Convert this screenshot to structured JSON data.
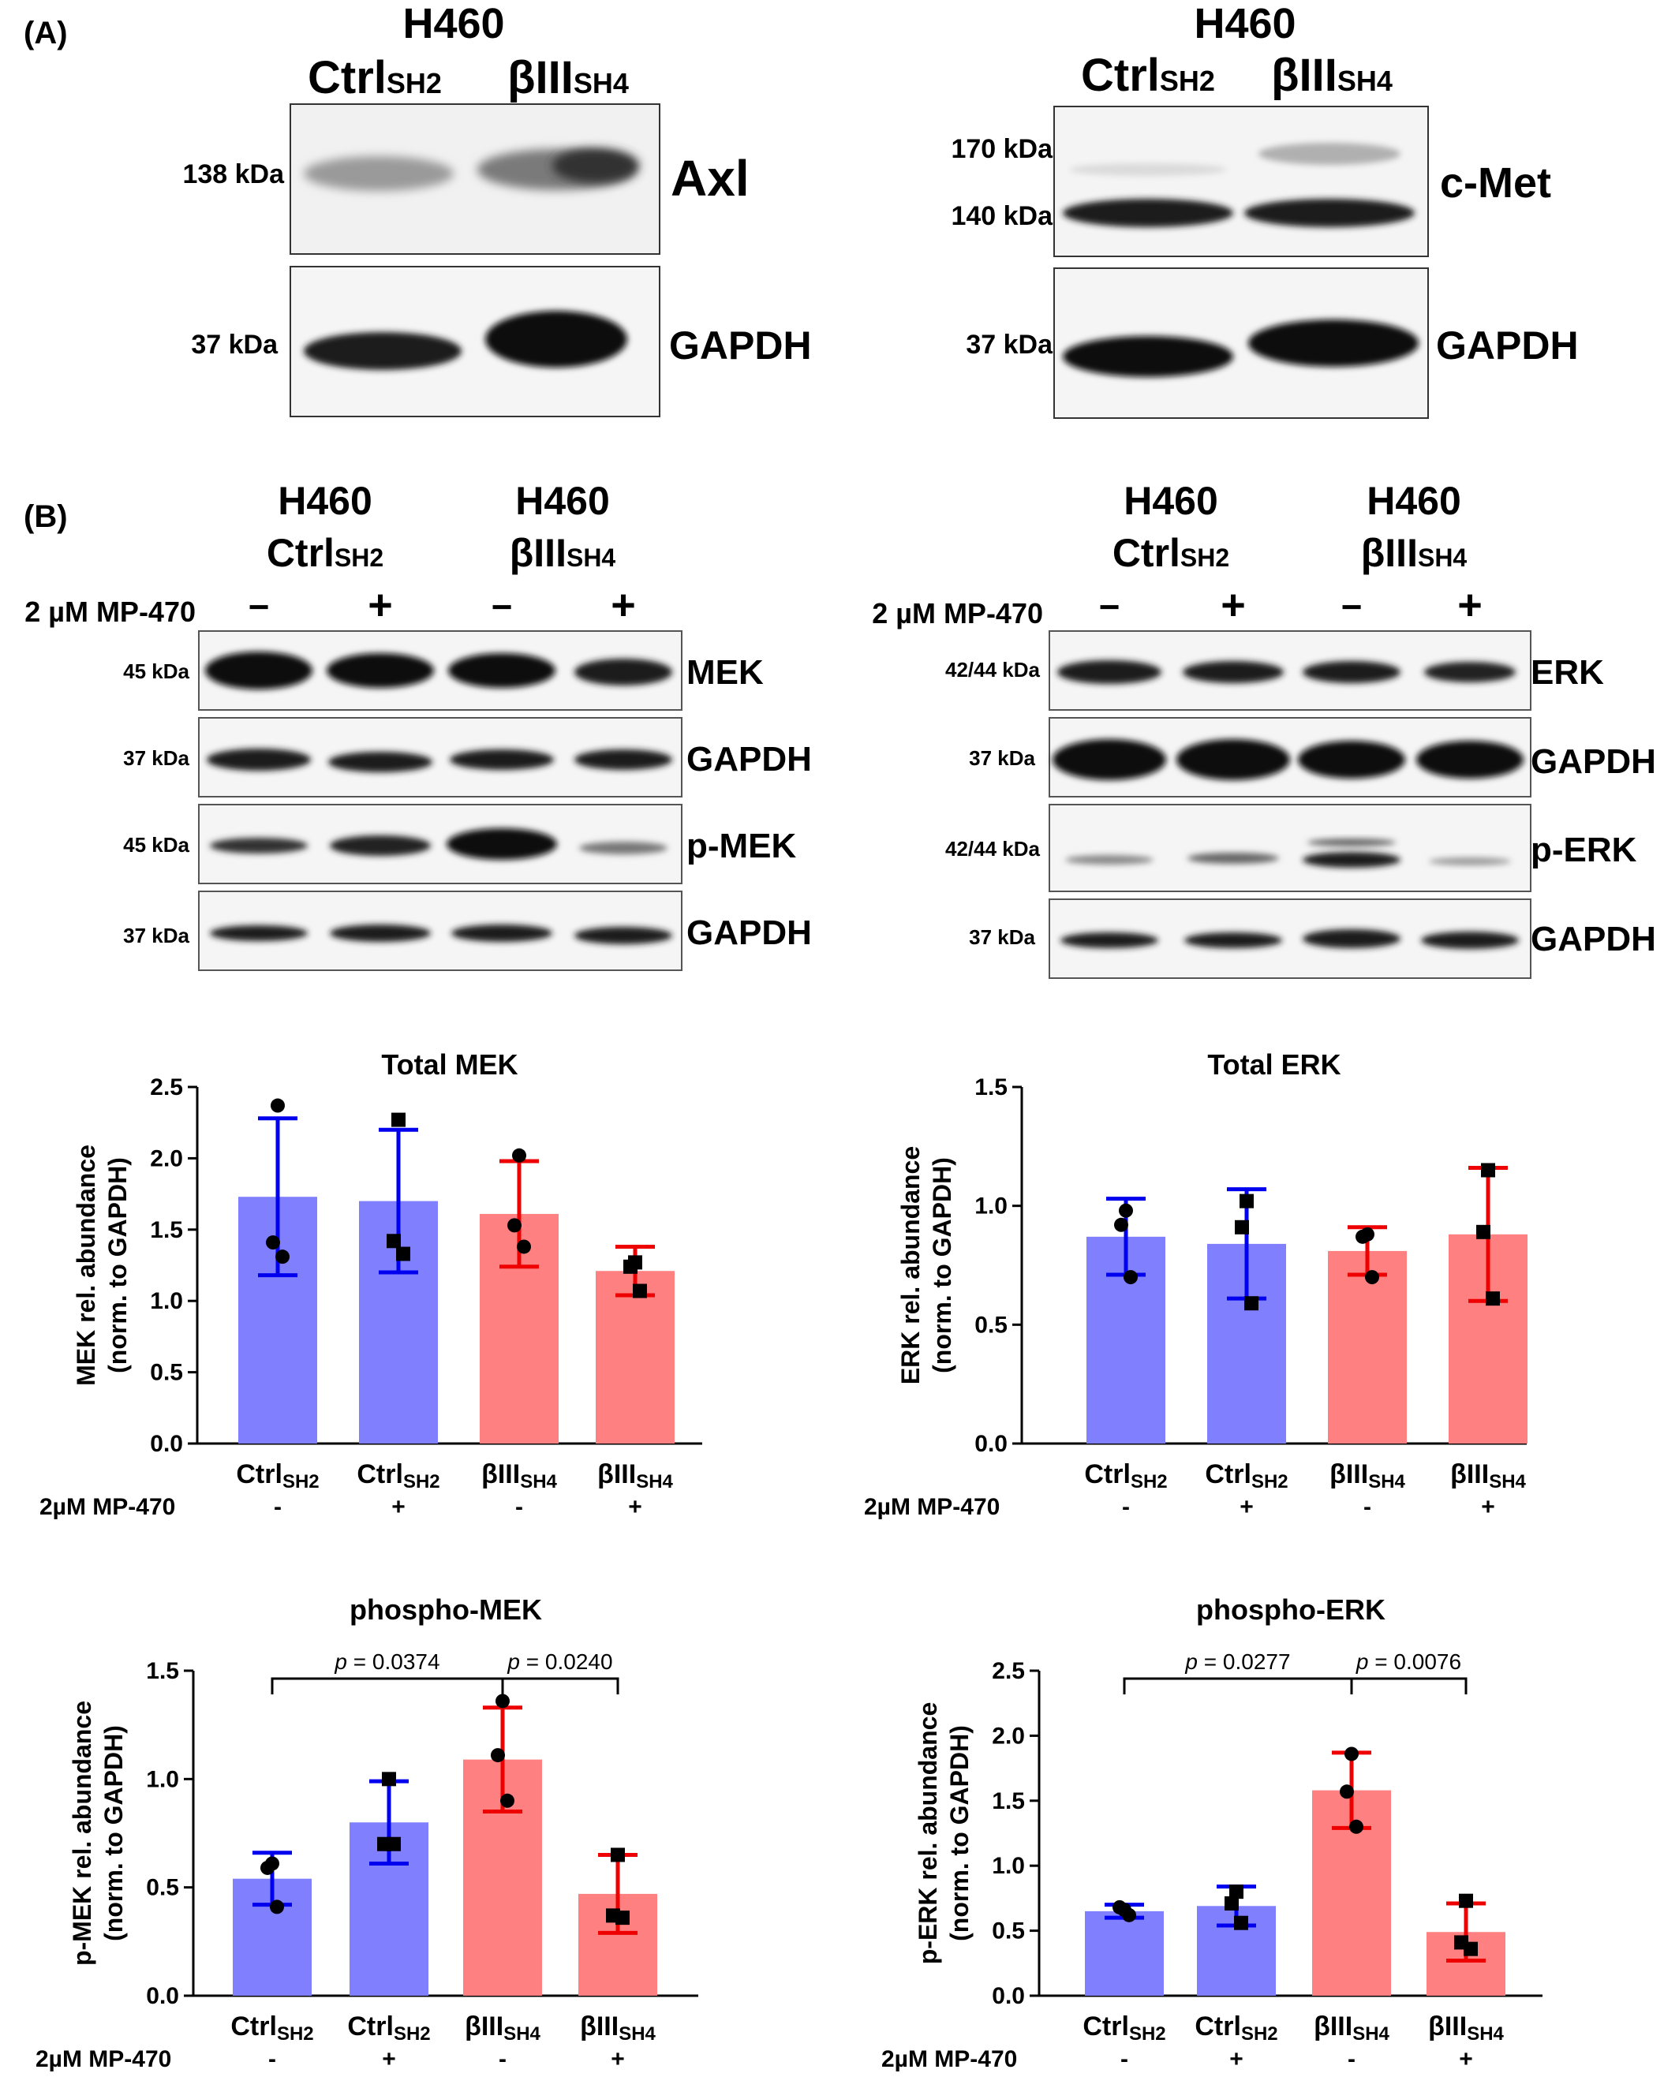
{
  "panels": {
    "a": "(A)",
    "b": "(B)"
  },
  "cell_line": "H460",
  "lanes": {
    "ctrl": {
      "main": "Ctrl",
      "sub": "SH2"
    },
    "biii": {
      "main": "βIII",
      "sub": "SH4"
    }
  },
  "treatment": {
    "label": "2 µM MP-470",
    "short": "2µM MP-470",
    "minus": "−",
    "plus": "+",
    "tick_minus": "-",
    "tick_plus": "+"
  },
  "blots": {
    "axl": {
      "marker": "138 kDa",
      "name": "Axl"
    },
    "axl_gapdh": {
      "marker": "37 kDa",
      "name": "GAPDH"
    },
    "cmet": {
      "markers": [
        "170 kDa",
        "140 kDa"
      ],
      "name": "c-Met"
    },
    "cmet_gapdh": {
      "marker": "37 kDa",
      "name": "GAPDH"
    },
    "mek": {
      "marker": "45 kDa",
      "name": "MEK"
    },
    "mek_gapdh1": {
      "marker": "37 kDa",
      "name": "GAPDH"
    },
    "pmek": {
      "marker": "45 kDa",
      "name": "p-MEK"
    },
    "mek_gapdh2": {
      "marker": "37 kDa",
      "name": "GAPDH"
    },
    "erk": {
      "marker": "42/44 kDa",
      "name": "ERK"
    },
    "erk_gapdh1": {
      "marker": "37 kDa",
      "name": "GAPDH"
    },
    "perk": {
      "marker": "42/44 kDa",
      "name": "p-ERK"
    },
    "erk_gapdh2": {
      "marker": "37 kDa",
      "name": "GAPDH"
    }
  },
  "colors": {
    "ctrl_bar": "#8080ff",
    "ctrl_err": "#0000ee",
    "biii_bar": "#ff8080",
    "biii_err": "#ee0000"
  },
  "chart_data": [
    {
      "type": "bar",
      "title": "Total MEK",
      "ylabel": [
        "MEK rel. abundance",
        "(norm. to GAPDH)"
      ],
      "ylim": [
        0,
        2.5
      ],
      "yticks": [
        "0.0",
        "0.5",
        "1.0",
        "1.5",
        "2.0",
        "2.5"
      ],
      "categories": [
        "CtrlSH2 -",
        "CtrlSH2 +",
        "βIIISH4 -",
        "βIIISH4 +"
      ],
      "values": [
        1.73,
        1.7,
        1.61,
        1.21
      ],
      "errors": [
        0.55,
        0.5,
        0.37,
        0.17
      ],
      "points": [
        [
          2.37,
          1.41,
          1.31
        ],
        [
          2.27,
          1.42,
          1.33
        ],
        [
          2.02,
          1.53,
          1.38
        ],
        [
          1.27,
          1.24,
          1.07
        ]
      ],
      "markers": [
        "circle",
        "square",
        "circle",
        "square"
      ],
      "brackets": []
    },
    {
      "type": "bar",
      "title": "Total ERK",
      "ylabel": [
        "ERK rel. abundance",
        "(norm. to GAPDH)"
      ],
      "ylim": [
        0,
        1.5
      ],
      "yticks": [
        "0.0",
        "0.5",
        "1.0",
        "1.5"
      ],
      "categories": [
        "CtrlSH2 -",
        "CtrlSH2 +",
        "βIIISH4 -",
        "βIIISH4 +"
      ],
      "values": [
        0.87,
        0.84,
        0.81,
        0.88
      ],
      "errors": [
        0.16,
        0.23,
        0.1,
        0.28
      ],
      "points": [
        [
          0.98,
          0.92,
          0.7
        ],
        [
          1.02,
          0.91,
          0.59
        ],
        [
          0.88,
          0.87,
          0.7
        ],
        [
          1.15,
          0.89,
          0.61
        ]
      ],
      "markers": [
        "circle",
        "square",
        "circle",
        "square"
      ],
      "brackets": []
    },
    {
      "type": "bar",
      "title": "phospho-MEK",
      "ylabel": [
        "p-MEK rel. abundance",
        "(norm. to GAPDH)"
      ],
      "ylim": [
        0,
        1.5
      ],
      "yticks": [
        "0.0",
        "0.5",
        "1.0",
        "1.5"
      ],
      "categories": [
        "CtrlSH2 -",
        "CtrlSH2 +",
        "βIIISH4 -",
        "βIIISH4 +"
      ],
      "values": [
        0.54,
        0.8,
        1.09,
        0.47
      ],
      "errors": [
        0.12,
        0.19,
        0.24,
        0.18
      ],
      "points": [
        [
          0.61,
          0.59,
          0.41
        ],
        [
          1.0,
          0.7,
          0.7
        ],
        [
          1.36,
          1.11,
          0.9
        ],
        [
          0.65,
          0.37,
          0.36
        ]
      ],
      "markers": [
        "circle",
        "square",
        "circle",
        "square"
      ],
      "brackets": [
        {
          "from": 0,
          "to": 2,
          "p_label": "p",
          "p_value": "= 0.0374"
        },
        {
          "from": 2,
          "to": 3,
          "p_label": "p",
          "p_value": "= 0.0240"
        }
      ]
    },
    {
      "type": "bar",
      "title": "phospho-ERK",
      "ylabel": [
        "p-ERK rel. abundance",
        "(norm. to GAPDH)"
      ],
      "ylim": [
        0,
        2.5
      ],
      "yticks": [
        "0.0",
        "0.5",
        "1.0",
        "1.5",
        "2.0",
        "2.5"
      ],
      "categories": [
        "CtrlSH2 -",
        "CtrlSH2 +",
        "βIIISH4 -",
        "βIIISH4 +"
      ],
      "values": [
        0.65,
        0.69,
        1.58,
        0.49
      ],
      "errors": [
        0.05,
        0.15,
        0.29,
        0.22
      ],
      "points": [
        [
          0.66,
          0.68,
          0.62
        ],
        [
          0.8,
          0.71,
          0.56
        ],
        [
          1.86,
          1.57,
          1.3
        ],
        [
          0.73,
          0.41,
          0.36
        ]
      ],
      "markers": [
        "circle",
        "square",
        "circle",
        "square"
      ],
      "brackets": [
        {
          "from": 0,
          "to": 2,
          "p_label": "p",
          "p_value": "= 0.0277"
        },
        {
          "from": 2,
          "to": 3,
          "p_label": "p",
          "p_value": "= 0.0076"
        }
      ]
    }
  ]
}
